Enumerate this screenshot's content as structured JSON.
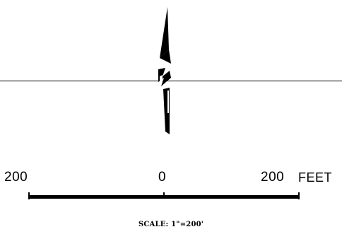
{
  "scale": {
    "left_value": "200",
    "center_value": "0",
    "right_value": "200",
    "unit": "FEET",
    "note": "SCALE: 1\"=200'"
  },
  "north_arrow": {
    "icon": "north-arrow-icon",
    "color": "#000000"
  },
  "colors": {
    "ink": "#000000",
    "paper": "#ffffff"
  }
}
